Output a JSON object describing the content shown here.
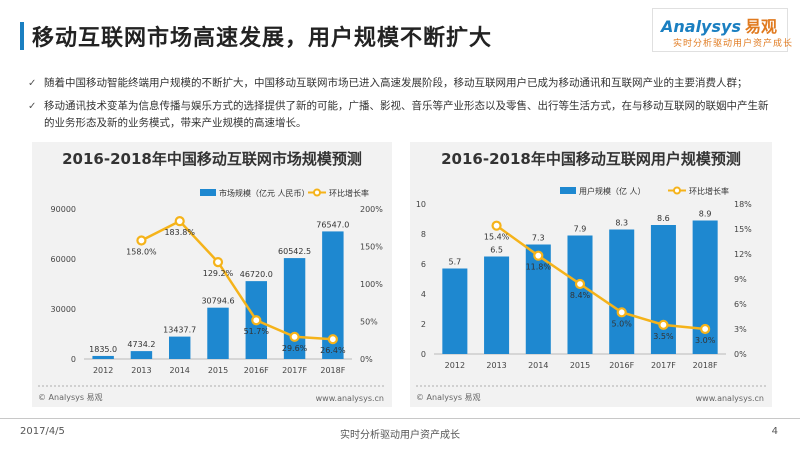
{
  "page": {
    "title": "移动互联网市场高速发展，用户规模不断扩大",
    "bullets": [
      "随着中国移动智能终端用户规模的不断扩大，中国移动互联网市场已进入高速发展阶段，移动互联网用户已成为移动通讯和互联网产业的主要消费人群；",
      "移动通讯技术变革为信息传播与娱乐方式的选择提供了新的可能，广播、影视、音乐等产业形态以及零售、出行等生活方式，在与移动互联网的联姻中产生新的业务形态及新的业务模式，带来产业规模的高速增长。"
    ]
  },
  "logo": {
    "name": "Analysys",
    "name_cn": "易观",
    "tagline": "实时分析驱动用户资产成长"
  },
  "colors": {
    "accent": "#1a7fc1",
    "bar": "#1e88d0",
    "line": "#f5b31a",
    "logo_orange": "#e07a1f"
  },
  "chart_data": [
    {
      "type": "bar",
      "title": "2016-2018年中国移动互联网市场规模预测",
      "categories": [
        "2012",
        "2013",
        "2014",
        "2015",
        "2016F",
        "2017F",
        "2018F"
      ],
      "series": [
        {
          "name": "市场规模（亿元 人民币）",
          "type": "bar",
          "axis": "left",
          "values": [
            1835.0,
            4734.2,
            13437.7,
            30794.6,
            46720.0,
            60542.5,
            76547.0
          ],
          "labels": [
            "1835.0",
            "4734.2",
            "13437.7",
            "30794.6",
            "46720.0",
            "60542.5",
            "76547.0"
          ]
        },
        {
          "name": "环比增长率",
          "type": "line",
          "axis": "right",
          "values": [
            null,
            158.0,
            183.8,
            129.2,
            51.7,
            29.6,
            26.4
          ],
          "labels": [
            "",
            "158.0%",
            "183.8%",
            "129.2%",
            "51.7%",
            "29.6%",
            "26.4%"
          ]
        }
      ],
      "y_left": {
        "range": [
          0,
          90000
        ],
        "ticks": [
          "0",
          "30000",
          "60000",
          "90000"
        ]
      },
      "y_right": {
        "range": [
          0,
          200
        ],
        "ticks": [
          "0%",
          "50%",
          "100%",
          "150%",
          "200%"
        ]
      },
      "source": "© Analysys 易观",
      "site": "www.analysys.cn"
    },
    {
      "type": "bar",
      "title": "2016-2018年中国移动互联网用户规模预测",
      "categories": [
        "2012",
        "2013",
        "2014",
        "2015",
        "2016F",
        "2017F",
        "2018F"
      ],
      "series": [
        {
          "name": "用户规模（亿 人）",
          "type": "bar",
          "axis": "left",
          "values": [
            5.7,
            6.5,
            7.3,
            7.9,
            8.3,
            8.6,
            8.9
          ],
          "labels": [
            "5.7",
            "6.5",
            "7.3",
            "7.9",
            "8.3",
            "8.6",
            "8.9"
          ]
        },
        {
          "name": "环比增长率",
          "type": "line",
          "axis": "right",
          "values": [
            null,
            15.4,
            11.8,
            8.4,
            5.0,
            3.5,
            3.0
          ],
          "labels": [
            "",
            "15.4%",
            "11.8%",
            "8.4%",
            "5.0%",
            "3.5%",
            "3.0%"
          ]
        }
      ],
      "y_left": {
        "range": [
          0,
          10
        ],
        "ticks": [
          "0",
          "2",
          "4",
          "6",
          "8",
          "10"
        ]
      },
      "y_right": {
        "range": [
          0,
          18
        ],
        "ticks": [
          "0%",
          "3%",
          "6%",
          "9%",
          "12%",
          "15%",
          "18%"
        ]
      },
      "source": "© Analysys 易观",
      "site": "www.analysys.cn"
    }
  ],
  "footer": {
    "date": "2017/4/5",
    "slogan": "实时分析驱动用户资产成长",
    "page": "4"
  }
}
